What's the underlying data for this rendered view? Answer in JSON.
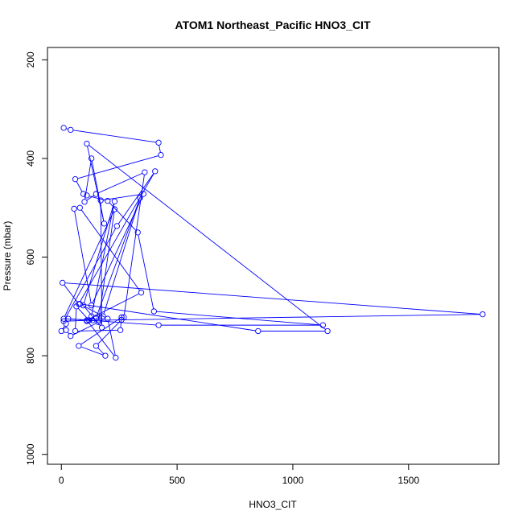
{
  "chart_data": {
    "type": "line",
    "title": "ATOM1 Northeast_Pacific HNO3_CIT",
    "xlabel": "HNO3_CIT",
    "ylabel": "Pressure (mbar)",
    "xlim": [
      -60,
      1890
    ],
    "ylim": [
      1020,
      175
    ],
    "y_reversed": true,
    "x_ticks": [
      0,
      500,
      1000,
      1500
    ],
    "y_ticks": [
      200,
      400,
      600,
      800,
      1000
    ],
    "series_color": "#0000ff",
    "marker": "open-circle",
    "series": [
      {
        "x": [
          10,
          40,
          420,
          430,
          60,
          95,
          110,
          200,
          330,
          400,
          1130,
          420,
          30,
          120,
          65,
          60,
          255,
          260,
          75,
          190,
          150,
          260,
          270,
          360,
          150,
          100,
          130,
          185,
          110,
          1150,
          850,
          80,
          200,
          235,
          110,
          345,
          80,
          55,
          130,
          355,
          170,
          175,
          95,
          230,
          130,
          180,
          340,
          150,
          110,
          160,
          1820,
          5,
          75,
          405,
          240,
          10,
          135,
          10,
          230,
          160,
          40,
          20,
          20,
          0
        ],
        "y": [
          338,
          342,
          368,
          393,
          442,
          472,
          475,
          486,
          550,
          710,
          738,
          738,
          725,
          728,
          700,
          750,
          748,
          722,
          780,
          800,
          780,
          727,
          722,
          428,
          472,
          488,
          400,
          532,
          370,
          750,
          750,
          695,
          725,
          804,
          728,
          672,
          500,
          502,
          698,
          472,
          485,
          743,
          698,
          487,
          720,
          720,
          480,
          723,
          730,
          728,
          716,
          652,
          695,
          426,
          537,
          730,
          728,
          725,
          503,
          732,
          760,
          748,
          735,
          750
        ]
      }
    ]
  }
}
